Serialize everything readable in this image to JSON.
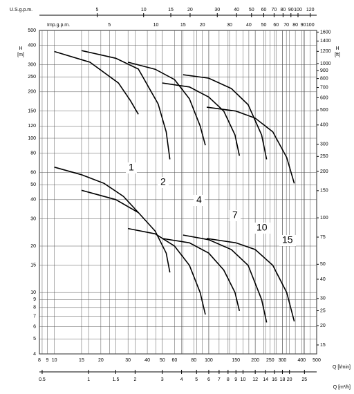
{
  "chart_data": {
    "type": "line",
    "y_label": "H",
    "y_unit": "[m]",
    "y2_label": "H",
    "y2_unit": "[ft]",
    "x_label": "Q [l/min]",
    "x2_label": "Q [m³/h]",
    "x3_label": "U.S.g.p.m.",
    "x4_label": "Imp.g.p.m.",
    "log_x": true,
    "log_y": true,
    "grid": true,
    "ylim": [
      4,
      500
    ],
    "yticks": [
      4,
      5,
      6,
      7,
      8,
      9,
      10,
      15,
      20,
      30,
      40,
      50,
      60,
      80,
      100,
      120,
      150,
      200,
      250,
      300,
      400,
      500
    ],
    "y2lim": [
      13.12,
      1640.4
    ],
    "y2ticks": [
      15,
      20,
      25,
      30,
      40,
      50,
      75,
      100,
      150,
      200,
      250,
      300,
      400,
      500,
      600,
      700,
      800,
      900,
      1000,
      1200,
      1400,
      1600
    ],
    "xlim": [
      8,
      500
    ],
    "xticks": [
      8,
      9,
      10,
      15,
      20,
      30,
      40,
      50,
      60,
      80,
      100,
      150,
      200,
      250,
      300,
      400,
      500
    ],
    "x2lim": [
      0.48,
      30
    ],
    "x2ticks": [
      0.5,
      1,
      1.5,
      2,
      3,
      4,
      5,
      6,
      7,
      8,
      9,
      10,
      12,
      14,
      16,
      18,
      20,
      25
    ],
    "x3lim": [
      2.1136,
      132.1
    ],
    "x3ticks": [
      5,
      10,
      15,
      20,
      30,
      40,
      50,
      60,
      70,
      80,
      90,
      100,
      120
    ],
    "x4lim": [
      1.76,
      110
    ],
    "x4ticks": [
      5,
      10,
      15,
      20,
      30,
      40,
      50,
      60,
      70,
      80,
      90,
      100
    ],
    "series": [
      {
        "name": "1",
        "color": "#000000",
        "curves": [
          {
            "x": [
              10,
              17,
              26,
              31,
              35
            ],
            "values": [
              365,
              311,
              228,
              176,
              143
            ]
          },
          {
            "x": [
              10,
              15,
              21,
              28,
              35
            ],
            "values": [
              65,
              58,
              51,
              42,
              33
            ]
          }
        ]
      },
      {
        "name": "2",
        "color": "#000000",
        "curves": [
          {
            "x": [
              15,
              25,
              35,
              47,
              53,
              56
            ],
            "values": [
              370,
              330,
              281,
              167,
              110,
              73
            ]
          },
          {
            "x": [
              15,
              25,
              35,
              45,
              53,
              56
            ],
            "values": [
              46,
              40,
              33,
              25,
              18,
              13.5
            ]
          }
        ]
      },
      {
        "name": "4",
        "color": "#000000",
        "curves": [
          {
            "x": [
              30,
              45,
              60,
              75,
              88,
              95
            ],
            "values": [
              311,
              280,
              240,
              180,
              120,
              90
            ]
          },
          {
            "x": [
              30,
              45,
              60,
              75,
              88,
              95
            ],
            "values": [
              26,
              24,
              20,
              15,
              10,
              7.2
            ]
          }
        ]
      },
      {
        "name": "7",
        "color": "#000000",
        "curves": [
          {
            "x": [
              50,
              75,
              100,
              125,
              148,
              158
            ],
            "values": [
              228,
              215,
              185,
              150,
              105,
              77
            ]
          },
          {
            "x": [
              50,
              75,
              100,
              125,
              148,
              158
            ],
            "values": [
              22.4,
              21,
              18,
              14,
              10,
              7.6
            ]
          }
        ]
      },
      {
        "name": "10",
        "color": "#000000",
        "curves": [
          {
            "x": [
              68,
              100,
              140,
              180,
              220,
              237
            ],
            "values": [
              258,
              245,
              210,
              165,
              105,
              73
            ]
          },
          {
            "x": [
              68,
              100,
              140,
              180,
              220,
              237
            ],
            "values": [
              23.6,
              22,
              19,
              15,
              9,
              6.4
            ]
          }
        ]
      },
      {
        "name": "15",
        "color": "#000000",
        "curves": [
          {
            "x": [
              97,
              150,
              200,
              260,
              320,
              358
            ],
            "values": [
              159,
              150,
              135,
              110,
              75,
              51
            ]
          },
          {
            "x": [
              97,
              150,
              200,
              260,
              320,
              358
            ],
            "values": [
              22.4,
              21,
              19,
              15,
              10,
              6.5
            ]
          }
        ]
      }
    ]
  }
}
